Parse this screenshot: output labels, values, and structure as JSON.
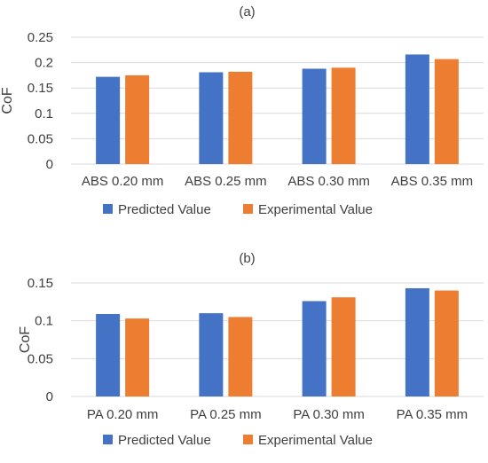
{
  "colors": {
    "predicted": "#4472C4",
    "experimental": "#ED7D31",
    "gridline": "#D9D9D9",
    "text": "#404040"
  },
  "chart_data": [
    {
      "type": "bar",
      "title": "(a)",
      "xlabel": "",
      "ylabel": "CoF",
      "categories": [
        "ABS 0.20 mm",
        "ABS 0.25 mm",
        "ABS 0.30 mm",
        "ABS 0.35 mm"
      ],
      "series": [
        {
          "name": "Predicted Value",
          "values": [
            0.172,
            0.181,
            0.188,
            0.216
          ]
        },
        {
          "name": "Experimental Value",
          "values": [
            0.175,
            0.182,
            0.19,
            0.207
          ]
        }
      ],
      "ylim": [
        0,
        0.25
      ],
      "yticks": [
        "0",
        "0.05",
        "0.1",
        "0.15",
        "0.2",
        "0.25"
      ],
      "grid": true,
      "legend": "bottom"
    },
    {
      "type": "bar",
      "title": "(b)",
      "xlabel": "",
      "ylabel": "CoF",
      "categories": [
        "PA 0.20 mm",
        "PA 0.25 mm",
        "PA 0.30 mm",
        "PA 0.35 mm"
      ],
      "series": [
        {
          "name": "Predicted Value",
          "values": [
            0.109,
            0.11,
            0.126,
            0.143
          ]
        },
        {
          "name": "Experimental Value",
          "values": [
            0.103,
            0.105,
            0.131,
            0.14
          ]
        }
      ],
      "ylim": [
        0,
        0.15
      ],
      "yticks": [
        "0",
        "0.05",
        "0.1",
        "0.15"
      ],
      "grid": true,
      "legend": "bottom"
    }
  ]
}
